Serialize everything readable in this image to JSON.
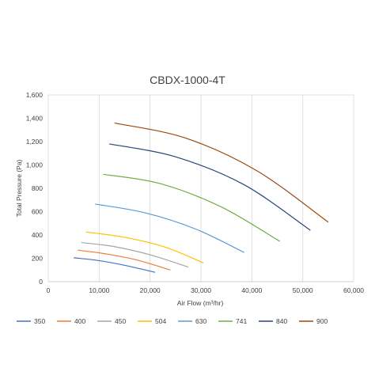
{
  "chart_data": {
    "type": "line",
    "title": "CBDX-1000-4T",
    "xlabel": "Air Flow (m³/hr)",
    "ylabel": "Total Pressure (Pa)",
    "xlim": [
      0,
      60000
    ],
    "ylim": [
      0,
      1600
    ],
    "x_ticks": [
      0,
      10000,
      20000,
      30000,
      40000,
      50000,
      60000
    ],
    "x_tick_labels": [
      "0",
      "10,000",
      "20,000",
      "30,000",
      "40,000",
      "50,000",
      "60,000"
    ],
    "y_ticks": [
      0,
      200,
      400,
      600,
      800,
      1000,
      1200,
      1400,
      1600
    ],
    "y_tick_labels": [
      "0",
      "200",
      "400",
      "600",
      "800",
      "1,000",
      "1,200",
      "1,400",
      "1,600"
    ],
    "grid": "vertical",
    "legend_position": "bottom",
    "series": [
      {
        "name": "350",
        "color": "#4472c4",
        "x": [
          5000,
          10000,
          15000,
          21000
        ],
        "y": [
          205,
          180,
          140,
          80
        ]
      },
      {
        "name": "400",
        "color": "#ed7d31",
        "x": [
          5800,
          11000,
          17000,
          24000
        ],
        "y": [
          270,
          240,
          190,
          100
        ]
      },
      {
        "name": "450",
        "color": "#a5a5a5",
        "x": [
          6500,
          13000,
          20000,
          27500
        ],
        "y": [
          335,
          300,
          230,
          125
        ]
      },
      {
        "name": "504",
        "color": "#ffc000",
        "x": [
          7400,
          15000,
          23000,
          30500
        ],
        "y": [
          425,
          380,
          295,
          160
        ]
      },
      {
        "name": "630",
        "color": "#5b9bd5",
        "x": [
          9200,
          19000,
          29000,
          38500
        ],
        "y": [
          665,
          590,
          450,
          250
        ]
      },
      {
        "name": "741",
        "color": "#70ad47",
        "x": [
          10800,
          22000,
          34000,
          45500
        ],
        "y": [
          920,
          840,
          640,
          345
        ]
      },
      {
        "name": "840",
        "color": "#264478",
        "x": [
          12000,
          25000,
          38500,
          51500
        ],
        "y": [
          1180,
          1070,
          830,
          440
        ]
      },
      {
        "name": "900",
        "color": "#9e480e",
        "x": [
          13000,
          27000,
          41000,
          55000
        ],
        "y": [
          1360,
          1230,
          950,
          510
        ]
      }
    ]
  }
}
